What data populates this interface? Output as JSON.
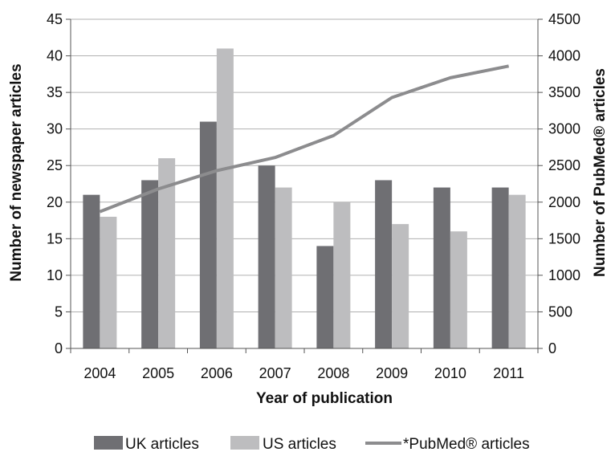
{
  "chart_data": {
    "type": "bar",
    "categories": [
      "2004",
      "2005",
      "2006",
      "2007",
      "2008",
      "2009",
      "2010",
      "2011"
    ],
    "series": [
      {
        "name": "UK articles",
        "type": "bar",
        "axis": "left",
        "color": "#6f6f73",
        "values": [
          21,
          23,
          31,
          25,
          14,
          23,
          22,
          22
        ]
      },
      {
        "name": "US articles",
        "type": "bar",
        "axis": "left",
        "color": "#bdbdbf",
        "values": [
          18,
          26,
          41,
          22,
          20,
          17,
          16,
          21
        ]
      },
      {
        "name": "*PubMed® articles",
        "type": "line",
        "axis": "right",
        "color": "#8c8c8e",
        "values": [
          1870,
          2180,
          2430,
          2610,
          2910,
          3430,
          3700,
          3860
        ]
      }
    ],
    "xlabel": "Year of publication",
    "ylabel": "Number of newspaper articles",
    "y2label": "Number of PubMed® articles",
    "ylim": [
      0,
      45
    ],
    "y2lim": [
      0,
      4500
    ],
    "yticks": [
      "0",
      "5",
      "10",
      "15",
      "20",
      "25",
      "30",
      "35",
      "40",
      "45"
    ],
    "y2ticks": [
      "0",
      "500",
      "1000",
      "1500",
      "2000",
      "2500",
      "3000",
      "3500",
      "4000",
      "4500"
    ],
    "grid": true,
    "legend_position": "bottom"
  }
}
